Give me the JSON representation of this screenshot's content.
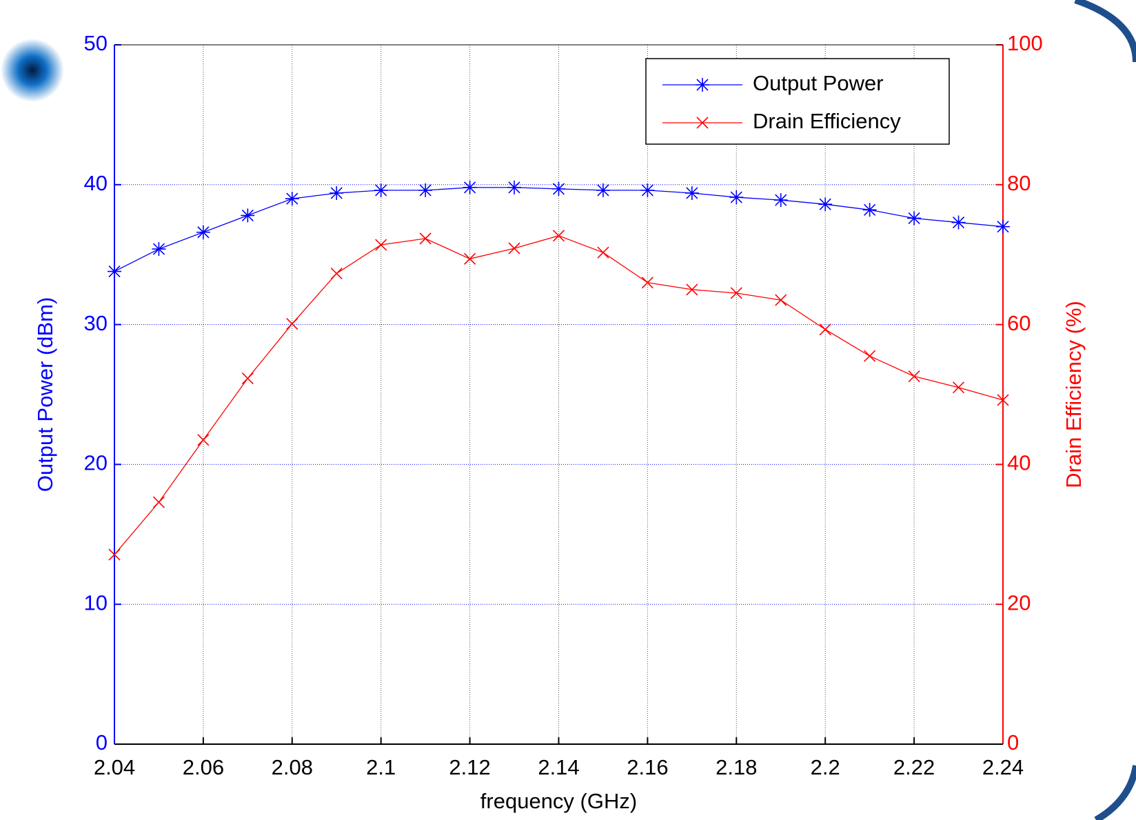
{
  "chart_data": {
    "type": "line",
    "x_label": "frequency (GHz)",
    "y_label": "Output Power (dBm)",
    "y2_label": "Drain Efficiency (%)",
    "x": [
      2.04,
      2.05,
      2.06,
      2.07,
      2.08,
      2.09,
      2.1,
      2.11,
      2.12,
      2.13,
      2.14,
      2.15,
      2.16,
      2.17,
      2.18,
      2.19,
      2.2,
      2.21,
      2.22,
      2.23,
      2.24
    ],
    "series": [
      {
        "name": "Output Power",
        "color": "#0000ff",
        "marker": "*",
        "values": [
          33.8,
          35.4,
          36.6,
          37.8,
          39.0,
          39.4,
          39.6,
          39.6,
          39.8,
          39.8,
          39.7,
          39.6,
          39.6,
          39.4,
          39.1,
          38.9,
          38.6,
          38.2,
          37.6,
          37.3,
          37.0
        ]
      },
      {
        "name": "Drain Efficiency",
        "color": "#ff0000",
        "marker": "x",
        "axis": "y2",
        "values": [
          27.1,
          34.6,
          43.5,
          52.3,
          60.1,
          67.3,
          71.4,
          72.3,
          69.4,
          70.9,
          72.7,
          70.3,
          66.0,
          65.0,
          64.5,
          63.5,
          59.3,
          55.5,
          52.6,
          51.0,
          49.2
        ]
      }
    ],
    "xlim": [
      2.04,
      2.24
    ],
    "xticks": [
      2.04,
      2.06,
      2.08,
      2.1,
      2.12,
      2.14,
      2.16,
      2.18,
      2.2,
      2.22,
      2.24
    ],
    "ylim": [
      0,
      50
    ],
    "yticks": [
      0,
      10,
      20,
      30,
      40,
      50
    ],
    "y2lim": [
      0,
      100
    ],
    "y2ticks": [
      0,
      20,
      40,
      60,
      80,
      100
    ],
    "grid": true,
    "legend": "upper right"
  }
}
